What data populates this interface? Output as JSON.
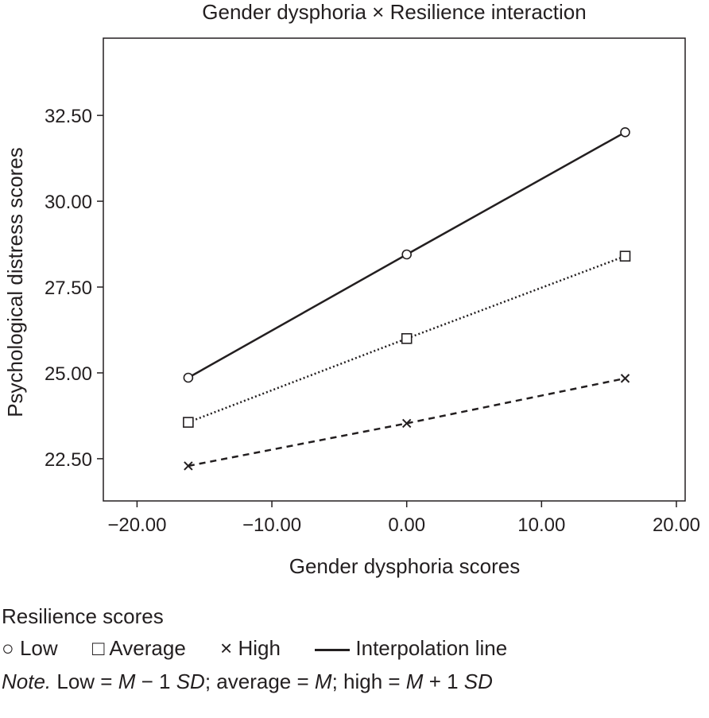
{
  "chart_data": {
    "type": "line",
    "title": "Gender dysphoria × Resilience interaction",
    "xlabel": "Gender dysphoria scores",
    "ylabel": "Psychological distress scores",
    "xlim": [
      -22.5,
      20.65
    ],
    "ylim": [
      21.27,
      34.75
    ],
    "xticks": [
      -20,
      -10,
      0,
      10,
      20
    ],
    "xtick_labels": [
      "−20.00",
      "−10.00",
      "0.00",
      "10.00",
      "20.00"
    ],
    "yticks": [
      22.5,
      25,
      27.5,
      30,
      32.5
    ],
    "ytick_labels": [
      "22.50",
      "25.00",
      "27.50",
      "30.00",
      "32.50"
    ],
    "grid": false,
    "x": [
      -16.2,
      0,
      16.2
    ],
    "series": [
      {
        "name": "Low",
        "marker": "circle",
        "dash": "solid",
        "values": [
          24.86,
          28.45,
          32.01
        ]
      },
      {
        "name": "Average",
        "marker": "square",
        "dash": "dotted",
        "values": [
          23.56,
          26.0,
          28.4
        ]
      },
      {
        "name": "High",
        "marker": "x",
        "dash": "dashed",
        "values": [
          22.29,
          23.53,
          24.84
        ]
      }
    ],
    "legend": {
      "title": "Resilience scores",
      "items": [
        {
          "symbol": "○",
          "label": "Low"
        },
        {
          "symbol": "□",
          "label": "Average"
        },
        {
          "symbol": "×",
          "label": "High"
        },
        {
          "symbol": "line",
          "label": "Interpolation line"
        }
      ],
      "placement": "bottom"
    },
    "note": {
      "prefix": "Note.",
      "parts": [
        " Low = ",
        "M",
        " − 1 ",
        "SD",
        "; average = ",
        "M",
        "; high = ",
        "M",
        " + 1 ",
        "SD"
      ]
    }
  }
}
